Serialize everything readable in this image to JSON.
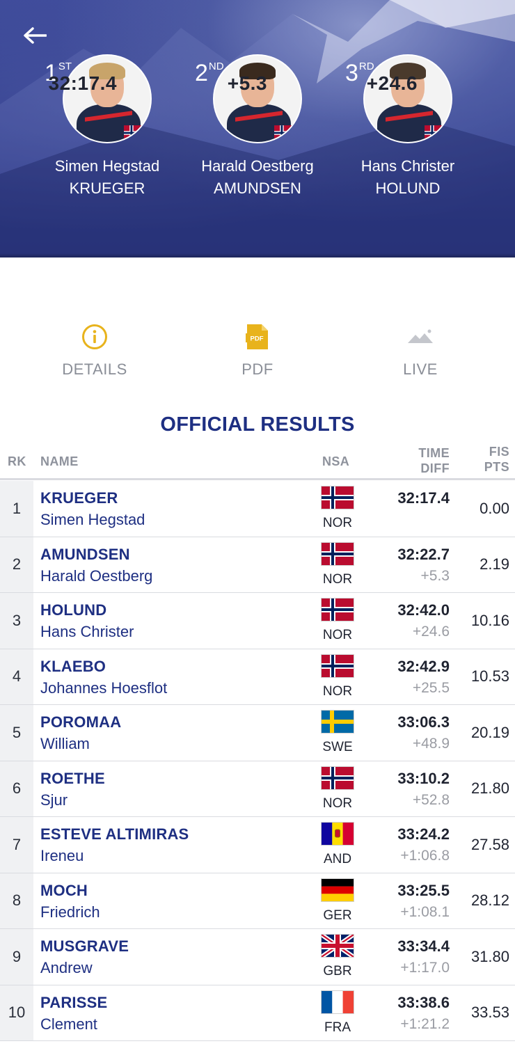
{
  "header": {
    "podium": [
      {
        "place": "1",
        "suffix": "ST",
        "time": "32:17.4",
        "first_name": "Simen Hegstad",
        "last_name": "KRUEGER",
        "hair": "#c8a46a"
      },
      {
        "place": "2",
        "suffix": "ND",
        "time": "+5.3",
        "first_name": "Harald Oestberg",
        "last_name": "AMUNDSEN",
        "hair": "#3a2a1e"
      },
      {
        "place": "3",
        "suffix": "RD",
        "time": "+24.6",
        "first_name": "Hans Christer",
        "last_name": "HOLUND",
        "hair": "#4a3a2c"
      }
    ]
  },
  "actions": {
    "details": "DETAILS",
    "pdf": "PDF",
    "pdf_icon_text": "PDF",
    "live": "LIVE"
  },
  "results": {
    "title": "OFFICIAL RESULTS",
    "columns": {
      "rk": "RK",
      "name": "NAME",
      "nsa": "NSA",
      "time_line1": "TIME",
      "time_line2": "DIFF",
      "fis_line1": "FIS",
      "fis_line2": "PTS"
    },
    "rows": [
      {
        "rk": "1",
        "last": "KRUEGER",
        "first": "Simen Hegstad",
        "nsa": "NOR",
        "flag": "nor",
        "time": "32:17.4",
        "diff": "",
        "pts": "0.00"
      },
      {
        "rk": "2",
        "last": "AMUNDSEN",
        "first": "Harald Oestberg",
        "nsa": "NOR",
        "flag": "nor",
        "time": "32:22.7",
        "diff": "+5.3",
        "pts": "2.19"
      },
      {
        "rk": "3",
        "last": "HOLUND",
        "first": "Hans Christer",
        "nsa": "NOR",
        "flag": "nor",
        "time": "32:42.0",
        "diff": "+24.6",
        "pts": "10.16"
      },
      {
        "rk": "4",
        "last": "KLAEBO",
        "first": "Johannes Hoesflot",
        "nsa": "NOR",
        "flag": "nor",
        "time": "32:42.9",
        "diff": "+25.5",
        "pts": "10.53"
      },
      {
        "rk": "5",
        "last": "POROMAA",
        "first": "William",
        "nsa": "SWE",
        "flag": "swe",
        "time": "33:06.3",
        "diff": "+48.9",
        "pts": "20.19"
      },
      {
        "rk": "6",
        "last": "ROETHE",
        "first": "Sjur",
        "nsa": "NOR",
        "flag": "nor",
        "time": "33:10.2",
        "diff": "+52.8",
        "pts": "21.80"
      },
      {
        "rk": "7",
        "last": "ESTEVE ALTIMIRAS",
        "first": "Ireneu",
        "nsa": "AND",
        "flag": "and",
        "time": "33:24.2",
        "diff": "+1:06.8",
        "pts": "27.58"
      },
      {
        "rk": "8",
        "last": "MOCH",
        "first": "Friedrich",
        "nsa": "GER",
        "flag": "ger",
        "time": "33:25.5",
        "diff": "+1:08.1",
        "pts": "28.12"
      },
      {
        "rk": "9",
        "last": "MUSGRAVE",
        "first": "Andrew",
        "nsa": "GBR",
        "flag": "gbr",
        "time": "33:34.4",
        "diff": "+1:17.0",
        "pts": "31.80"
      },
      {
        "rk": "10",
        "last": "PARISSE",
        "first": "Clement",
        "nsa": "FRA",
        "flag": "fra",
        "time": "33:38.6",
        "diff": "+1:21.2",
        "pts": "33.53"
      }
    ]
  },
  "colors": {
    "brand_blue": "#1e2f82",
    "gold": "#e8b31c",
    "muted": "#8a8e97"
  }
}
